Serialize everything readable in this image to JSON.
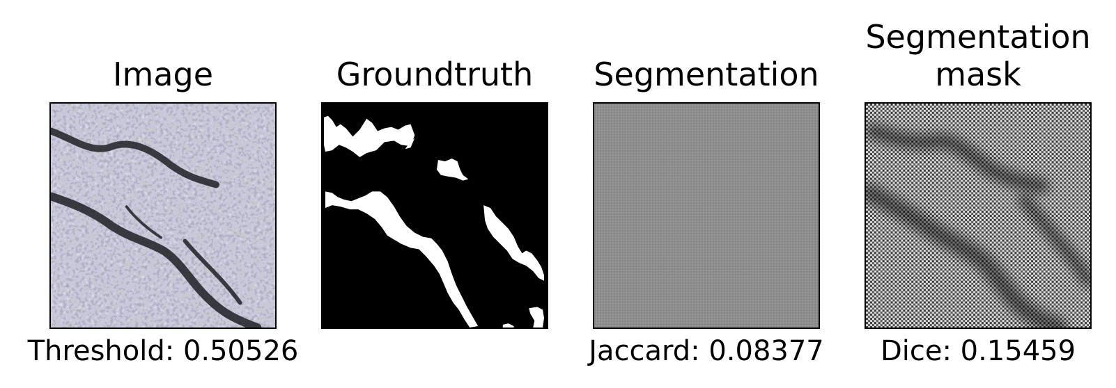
{
  "panels": [
    {
      "title": "Image",
      "caption": "Threshold: 0.50526"
    },
    {
      "title": "Groundtruth",
      "caption": ""
    },
    {
      "title": "Segmentation",
      "caption": "Jaccard: 0.08377"
    },
    {
      "title": "Segmentation\nmask",
      "caption": "Dice: 0.15459"
    }
  ],
  "colors": {
    "background": "#ffffff",
    "text": "#000000",
    "groundtruth_bg": "#000000",
    "groundtruth_crack": "#ffffff",
    "segmentation_gray": "#8c8c8c"
  }
}
